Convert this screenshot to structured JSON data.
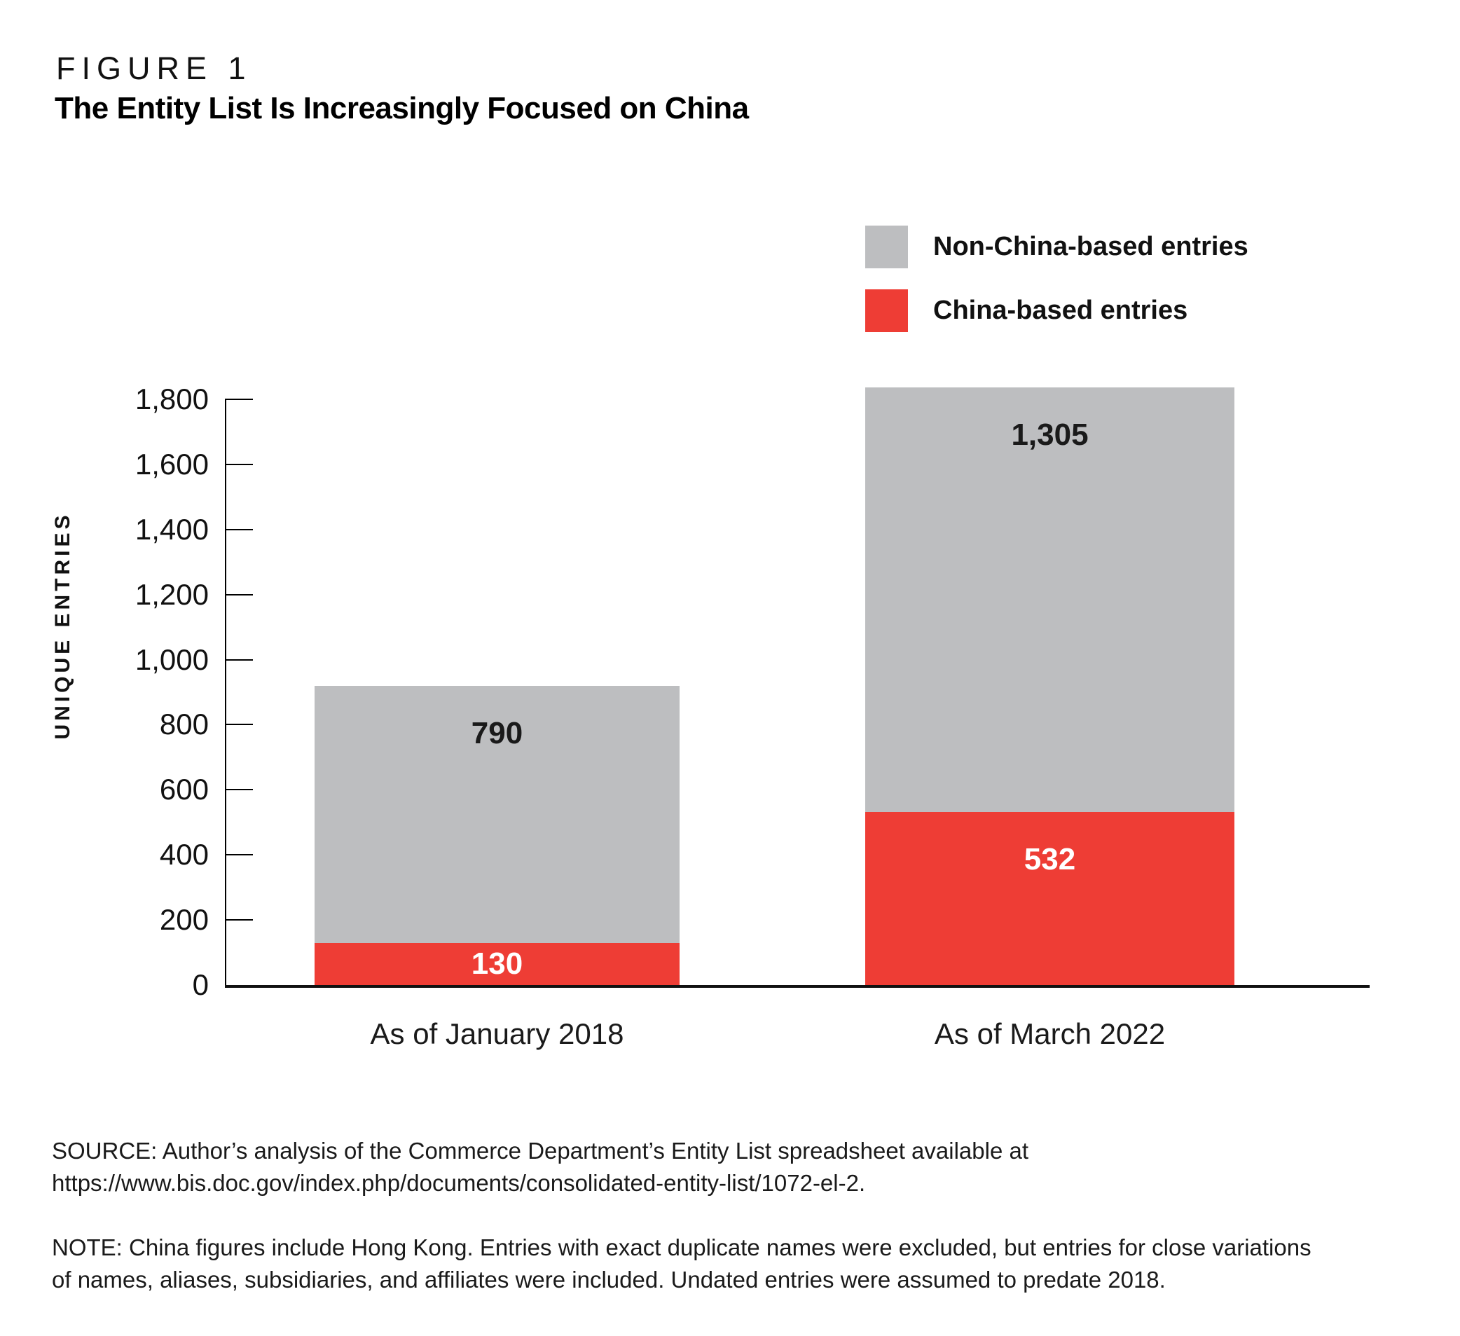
{
  "figure_label": "FIGURE 1",
  "title": "The Entity List Is Increasingly Focused on China",
  "legend": [
    {
      "id": "non-china",
      "label": "Non-China-based entries",
      "color": "#bdbec0"
    },
    {
      "id": "china",
      "label": "China-based entries",
      "color": "#ee3d35"
    }
  ],
  "chart_data": {
    "type": "bar",
    "stacked": true,
    "title": "The Entity List Is Increasingly Focused on China",
    "categories": [
      "As of January 2018",
      "As of March 2022"
    ],
    "series": [
      {
        "id": "china",
        "name": "China-based entries",
        "values": [
          130,
          532
        ],
        "value_labels": [
          "130",
          "532"
        ],
        "color": "#ee3d35",
        "value_label_color": "#ffffff"
      },
      {
        "id": "non-china",
        "name": "Non-China-based entries",
        "values": [
          790,
          1305
        ],
        "value_labels": [
          "790",
          "1,305"
        ],
        "color": "#bdbec0",
        "value_label_color": "#1a1a1a"
      }
    ],
    "totals": [
      920,
      1837
    ],
    "ylabel": "UNIQUE ENTRIES",
    "ylim": [
      0,
      1800
    ],
    "ytick_interval": 200,
    "yticks": [
      {
        "value": 1800,
        "label": "1,800"
      },
      {
        "value": 1600,
        "label": "1,600"
      },
      {
        "value": 1400,
        "label": "1,400"
      },
      {
        "value": 1200,
        "label": "1,200"
      },
      {
        "value": 1000,
        "label": "1,000"
      },
      {
        "value": 800,
        "label": "800"
      },
      {
        "value": 600,
        "label": "600"
      },
      {
        "value": 400,
        "label": "400"
      },
      {
        "value": 200,
        "label": "200"
      },
      {
        "value": 0,
        "label": "0"
      }
    ],
    "grid": false,
    "legend_position": "top-right"
  },
  "source": {
    "lines": [
      "SOURCE: Author’s analysis of the Commerce Department’s Entity List spreadsheet available at",
      "https://www.bis.doc.gov/index.php/documents/consolidated-entity-list/1072-el-2."
    ]
  },
  "note": {
    "lines": [
      "NOTE: China figures include Hong Kong. Entries with exact duplicate names were excluded, but entries for close variations",
      "of names, aliases, subsidiaries, and affiliates were included. Undated entries were assumed to predate 2018."
    ]
  }
}
